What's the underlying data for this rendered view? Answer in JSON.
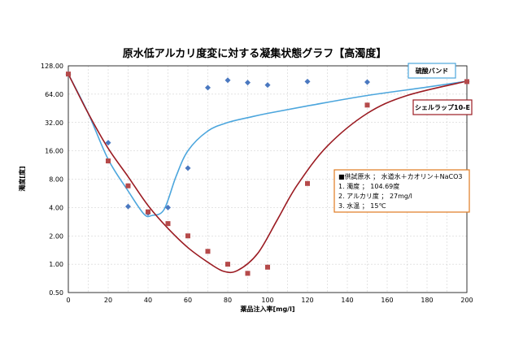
{
  "chart_data": {
    "type": "scatter",
    "title": "原水低アルカリ度変に対する凝集状態グラフ【高濁度】",
    "xlabel": "薬品注入率[mg/l]",
    "ylabel": "濁度[度]",
    "x_ticks": [
      "0",
      "20",
      "40",
      "60",
      "80",
      "100",
      "120",
      "140",
      "160",
      "180",
      "200"
    ],
    "y_ticks": [
      "0.50",
      "1.00",
      "2.00",
      "4.00",
      "8.00",
      "16.00",
      "32.00",
      "64.00",
      "128.00"
    ],
    "xlim": [
      0,
      200
    ],
    "ylim": [
      0.5,
      128
    ],
    "y_scale": "log2",
    "grid": true,
    "series": [
      {
        "name": "硫酸バンド",
        "color": "#4a78c0",
        "line_color": "#4ca6dd",
        "marker": "diamond",
        "points": [
          [
            0,
            104.69
          ],
          [
            20,
            19.5
          ],
          [
            30,
            4.1
          ],
          [
            40,
            3.5
          ],
          [
            50,
            4.0
          ],
          [
            60,
            10.5
          ],
          [
            70,
            75
          ],
          [
            80,
            90
          ],
          [
            90,
            85
          ],
          [
            100,
            80
          ],
          [
            120,
            87
          ],
          [
            150,
            86
          ],
          [
            200,
            87
          ]
        ],
        "fit": [
          [
            0,
            104.69
          ],
          [
            10,
            40
          ],
          [
            20,
            13
          ],
          [
            30,
            6
          ],
          [
            38,
            3.4
          ],
          [
            42,
            3.3
          ],
          [
            48,
            3.8
          ],
          [
            54,
            8.5
          ],
          [
            60,
            16
          ],
          [
            70,
            26
          ],
          [
            80,
            32
          ],
          [
            90,
            36
          ],
          [
            100,
            40
          ],
          [
            120,
            48
          ],
          [
            150,
            62
          ],
          [
            180,
            76
          ],
          [
            200,
            88
          ]
        ]
      },
      {
        "name": "シェルラップ10-E",
        "color": "#b54a4a",
        "line_color": "#9b1b22",
        "marker": "square",
        "points": [
          [
            0,
            104.69
          ],
          [
            20,
            12.5
          ],
          [
            30,
            6.8
          ],
          [
            40,
            3.6
          ],
          [
            50,
            2.7
          ],
          [
            60,
            2.0
          ],
          [
            70,
            1.37
          ],
          [
            80,
            1.0
          ],
          [
            90,
            0.8
          ],
          [
            100,
            0.93
          ],
          [
            120,
            7.2
          ],
          [
            150,
            49
          ],
          [
            200,
            87
          ]
        ],
        "fit": [
          [
            0,
            104.69
          ],
          [
            10,
            40
          ],
          [
            20,
            17
          ],
          [
            30,
            8.5
          ],
          [
            40,
            4.2
          ],
          [
            50,
            2.4
          ],
          [
            60,
            1.5
          ],
          [
            70,
            1.05
          ],
          [
            78,
            0.84
          ],
          [
            85,
            0.86
          ],
          [
            95,
            1.3
          ],
          [
            105,
            3.0
          ],
          [
            115,
            7.0
          ],
          [
            130,
            18
          ],
          [
            150,
            40
          ],
          [
            170,
            62
          ],
          [
            200,
            88
          ]
        ]
      }
    ],
    "info_box": {
      "lines": [
        "■供試原水 ； 水道水＋カオリン＋NaCO3",
        "1. 濁度 ； 104.69度",
        "2. アルカリ度 ； 27mg/l",
        "3. 水温 ； 15℃"
      ],
      "border_color": "#e07a20"
    }
  }
}
